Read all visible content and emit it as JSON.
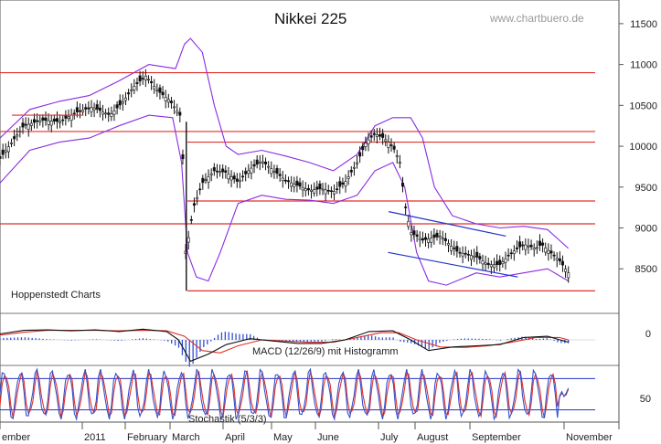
{
  "chart_data": [
    {
      "type": "candlestick",
      "title": "Nikkei 225",
      "watermark": "www.chartbuero.de",
      "source_label": "Hoppenstedt Charts",
      "ylim": [
        8100,
        11700
      ],
      "y_ticks": [
        "11500",
        "11000",
        "10500",
        "10000",
        "9500",
        "9000",
        "8500"
      ],
      "x_ticks": [
        "ember",
        "2011",
        "February",
        "March",
        "April",
        "May",
        "June",
        "July",
        "August",
        "September",
        "November"
      ],
      "horizontal_levels": [
        10900,
        10180,
        10050,
        9330,
        9050,
        8230
      ],
      "price_path": [
        [
          0,
          9850
        ],
        [
          0.02,
          10050
        ],
        [
          0.04,
          10250
        ],
        [
          0.07,
          10320
        ],
        [
          0.1,
          10300
        ],
        [
          0.13,
          10420
        ],
        [
          0.155,
          10480
        ],
        [
          0.185,
          10380
        ],
        [
          0.205,
          10530
        ],
        [
          0.225,
          10730
        ],
        [
          0.245,
          10860
        ],
        [
          0.265,
          10680
        ],
        [
          0.285,
          10560
        ],
        [
          0.295,
          10460
        ],
        [
          0.305,
          10350
        ],
        [
          0.312,
          8700
        ],
        [
          0.318,
          8930
        ],
        [
          0.325,
          9250
        ],
        [
          0.34,
          9550
        ],
        [
          0.36,
          9700
        ],
        [
          0.38,
          9680
        ],
        [
          0.4,
          9560
        ],
        [
          0.42,
          9720
        ],
        [
          0.44,
          9820
        ],
        [
          0.46,
          9700
        ],
        [
          0.48,
          9580
        ],
        [
          0.5,
          9520
        ],
        [
          0.52,
          9460
        ],
        [
          0.54,
          9480
        ],
        [
          0.56,
          9440
        ],
        [
          0.58,
          9560
        ],
        [
          0.6,
          9800
        ],
        [
          0.615,
          10050
        ],
        [
          0.63,
          10150
        ],
        [
          0.645,
          10100
        ],
        [
          0.66,
          10000
        ],
        [
          0.672,
          9800
        ],
        [
          0.68,
          9300
        ],
        [
          0.69,
          8950
        ],
        [
          0.71,
          8850
        ],
        [
          0.74,
          8900
        ],
        [
          0.77,
          8700
        ],
        [
          0.8,
          8650
        ],
        [
          0.82,
          8550
        ],
        [
          0.84,
          8550
        ],
        [
          0.86,
          8700
        ],
        [
          0.88,
          8800
        ],
        [
          0.9,
          8750
        ],
        [
          0.91,
          8800
        ],
        [
          0.925,
          8700
        ],
        [
          0.94,
          8600
        ],
        [
          0.955,
          8450
        ]
      ],
      "upper_band_path": [
        [
          0,
          10100
        ],
        [
          0.05,
          10450
        ],
        [
          0.1,
          10550
        ],
        [
          0.15,
          10620
        ],
        [
          0.2,
          10800
        ],
        [
          0.25,
          11000
        ],
        [
          0.295,
          10950
        ],
        [
          0.31,
          11250
        ],
        [
          0.32,
          11320
        ],
        [
          0.34,
          11150
        ],
        [
          0.36,
          10500
        ],
        [
          0.38,
          10000
        ],
        [
          0.4,
          9900
        ],
        [
          0.44,
          9950
        ],
        [
          0.48,
          9880
        ],
        [
          0.52,
          9800
        ],
        [
          0.56,
          9700
        ],
        [
          0.6,
          9900
        ],
        [
          0.63,
          10250
        ],
        [
          0.66,
          10350
        ],
        [
          0.69,
          10350
        ],
        [
          0.71,
          10100
        ],
        [
          0.73,
          9500
        ],
        [
          0.76,
          9150
        ],
        [
          0.8,
          9050
        ],
        [
          0.84,
          9000
        ],
        [
          0.88,
          9020
        ],
        [
          0.92,
          8980
        ],
        [
          0.955,
          8750
        ]
      ],
      "lower_band_path": [
        [
          0,
          9550
        ],
        [
          0.05,
          9950
        ],
        [
          0.1,
          10050
        ],
        [
          0.15,
          10100
        ],
        [
          0.2,
          10250
        ],
        [
          0.25,
          10380
        ],
        [
          0.29,
          10350
        ],
        [
          0.305,
          9800
        ],
        [
          0.315,
          8700
        ],
        [
          0.33,
          8400
        ],
        [
          0.35,
          8350
        ],
        [
          0.37,
          8700
        ],
        [
          0.4,
          9300
        ],
        [
          0.44,
          9400
        ],
        [
          0.48,
          9350
        ],
        [
          0.52,
          9340
        ],
        [
          0.56,
          9300
        ],
        [
          0.6,
          9400
        ],
        [
          0.63,
          9700
        ],
        [
          0.66,
          9800
        ],
        [
          0.68,
          9500
        ],
        [
          0.7,
          8700
        ],
        [
          0.72,
          8350
        ],
        [
          0.75,
          8300
        ],
        [
          0.8,
          8450
        ],
        [
          0.84,
          8400
        ],
        [
          0.88,
          8450
        ],
        [
          0.92,
          8500
        ],
        [
          0.955,
          8350
        ]
      ],
      "channel_lines": [
        [
          [
            0.653,
            9200
          ],
          [
            0.85,
            8900
          ]
        ],
        [
          [
            0.652,
            8700
          ],
          [
            0.87,
            8400
          ]
        ]
      ]
    },
    {
      "type": "line",
      "label": "MACD (12/26/9) mit Histogramm",
      "ylim": [
        -1,
        1
      ],
      "y_ticks": [
        "0"
      ],
      "macd_path": [
        [
          0,
          0.25
        ],
        [
          0.04,
          0.4
        ],
        [
          0.08,
          0.42
        ],
        [
          0.12,
          0.38
        ],
        [
          0.16,
          0.42
        ],
        [
          0.2,
          0.35
        ],
        [
          0.24,
          0.45
        ],
        [
          0.28,
          0.35
        ],
        [
          0.3,
          0.0
        ],
        [
          0.32,
          -0.9
        ],
        [
          0.35,
          -0.6
        ],
        [
          0.38,
          -0.2
        ],
        [
          0.42,
          0.05
        ],
        [
          0.46,
          -0.05
        ],
        [
          0.5,
          -0.15
        ],
        [
          0.54,
          -0.15
        ],
        [
          0.58,
          0.0
        ],
        [
          0.62,
          0.35
        ],
        [
          0.66,
          0.38
        ],
        [
          0.69,
          0.0
        ],
        [
          0.72,
          -0.45
        ],
        [
          0.76,
          -0.3
        ],
        [
          0.8,
          -0.25
        ],
        [
          0.84,
          -0.2
        ],
        [
          0.88,
          0.1
        ],
        [
          0.92,
          0.15
        ],
        [
          0.955,
          -0.1
        ]
      ],
      "signal_path": [
        [
          0,
          0.2
        ],
        [
          0.04,
          0.32
        ],
        [
          0.08,
          0.4
        ],
        [
          0.12,
          0.4
        ],
        [
          0.16,
          0.4
        ],
        [
          0.2,
          0.38
        ],
        [
          0.24,
          0.4
        ],
        [
          0.28,
          0.38
        ],
        [
          0.31,
          0.15
        ],
        [
          0.34,
          -0.45
        ],
        [
          0.37,
          -0.55
        ],
        [
          0.4,
          -0.25
        ],
        [
          0.44,
          0.0
        ],
        [
          0.48,
          -0.05
        ],
        [
          0.52,
          -0.1
        ],
        [
          0.56,
          -0.1
        ],
        [
          0.6,
          0.1
        ],
        [
          0.64,
          0.3
        ],
        [
          0.67,
          0.3
        ],
        [
          0.7,
          0.0
        ],
        [
          0.74,
          -0.3
        ],
        [
          0.78,
          -0.32
        ],
        [
          0.82,
          -0.25
        ],
        [
          0.86,
          -0.1
        ],
        [
          0.9,
          0.1
        ],
        [
          0.94,
          0.1
        ],
        [
          0.955,
          0.0
        ]
      ]
    },
    {
      "type": "line",
      "label": "Stochastik (5/3/3)",
      "ylim": [
        0,
        100
      ],
      "y_ticks": [
        "50"
      ],
      "levels": [
        80,
        20
      ],
      "cycles": 37
    }
  ]
}
